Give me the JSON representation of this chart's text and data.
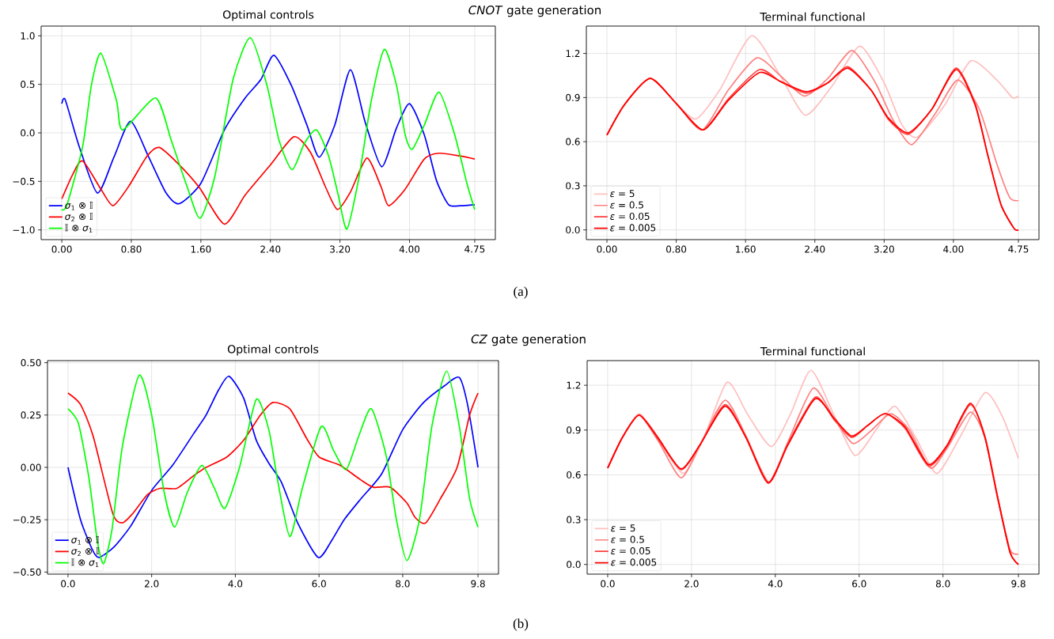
{
  "chart_data": [
    {
      "type": "line",
      "title": "Optimal controls",
      "annotations": [
        "*CNOT* gate generation",
        "(a)"
      ],
      "xlim": [
        -0.2375,
        4.9875
      ],
      "ylim": [
        -1.1,
        1.1
      ],
      "xticks": [
        {
          "value": 0,
          "label": "0.00"
        },
        {
          "value": 0.8,
          "label": "0.80"
        },
        {
          "value": 1.6,
          "label": "1.60"
        },
        {
          "value": 2.4,
          "label": "2.40"
        },
        {
          "value": 3.2,
          "label": "3.20"
        },
        {
          "value": 4.0,
          "label": "4.00"
        },
        {
          "value": 4.75,
          "label": "4.75"
        }
      ],
      "yticks": [
        {
          "value": -1,
          "label": "−1.0"
        },
        {
          "value": -0.5,
          "label": "−0.5"
        },
        {
          "value": 0,
          "label": "0.0"
        },
        {
          "value": 0.5,
          "label": "0.5"
        },
        {
          "value": 1,
          "label": "1.0"
        }
      ],
      "grid": true,
      "legend": "lower left",
      "series": [
        {
          "name": "*σ*$_{1}$ ⊗ 𝕀",
          "color": "#0000ff",
          "x": [
            0,
            0.04,
            0.2,
            0.41,
            0.6,
            0.79,
            1.0,
            1.2,
            1.35,
            1.6,
            1.87,
            2.11,
            2.29,
            2.44,
            2.64,
            2.82,
            2.96,
            3.14,
            3.32,
            3.49,
            3.68,
            3.85,
            4.0,
            4.17,
            4.31,
            4.45,
            4.59,
            4.75
          ],
          "values": [
            0.3,
            0.34,
            -0.14,
            -0.62,
            -0.25,
            0.12,
            -0.25,
            -0.62,
            -0.73,
            -0.52,
            0.03,
            0.36,
            0.55,
            0.8,
            0.49,
            0.08,
            -0.25,
            0.08,
            0.65,
            0.11,
            -0.35,
            0.05,
            0.3,
            -0.02,
            -0.49,
            -0.74,
            -0.75,
            -0.74
          ]
        },
        {
          "name": "*σ*$_{2}$ ⊗ 𝕀",
          "color": "#ff0000",
          "x": [
            0,
            0.13,
            0.24,
            0.45,
            0.59,
            0.77,
            0.98,
            1.12,
            1.33,
            1.58,
            1.87,
            2.11,
            2.4,
            2.67,
            2.86,
            3.03,
            3.17,
            3.32,
            3.51,
            3.67,
            3.76,
            3.95,
            4.17,
            4.34,
            4.59,
            4.75
          ],
          "values": [
            -0.68,
            -0.42,
            -0.29,
            -0.58,
            -0.75,
            -0.55,
            -0.24,
            -0.15,
            -0.31,
            -0.56,
            -0.94,
            -0.64,
            -0.33,
            -0.04,
            -0.2,
            -0.55,
            -0.79,
            -0.61,
            -0.26,
            -0.55,
            -0.75,
            -0.58,
            -0.27,
            -0.21,
            -0.24,
            -0.27
          ]
        },
        {
          "name": "𝕀 ⊗ *σ*$_{1}$",
          "color": "#00ff00",
          "x": [
            0,
            0.06,
            0.24,
            0.34,
            0.45,
            0.63,
            0.7,
            1.08,
            1.26,
            1.44,
            1.59,
            1.76,
            1.97,
            2.17,
            2.36,
            2.5,
            2.65,
            2.79,
            2.93,
            3.07,
            3.18,
            3.28,
            3.42,
            3.56,
            3.71,
            3.85,
            3.95,
            4.03,
            4.17,
            4.34,
            4.52,
            4.66,
            4.75
          ],
          "values": [
            -0.79,
            -0.74,
            -0.14,
            0.49,
            0.82,
            0.33,
            0.03,
            0.36,
            -0.08,
            -0.55,
            -0.88,
            -0.45,
            0.55,
            0.98,
            0.49,
            -0.08,
            -0.38,
            -0.11,
            0.03,
            -0.24,
            -0.64,
            -0.99,
            -0.45,
            0.33,
            0.86,
            0.49,
            -0.02,
            -0.17,
            0.08,
            0.42,
            -0.02,
            -0.52,
            -0.79
          ]
        }
      ]
    },
    {
      "type": "line",
      "title": "Terminal functional",
      "xlim": [
        -0.2375,
        4.9875
      ],
      "ylim": [
        -0.066,
        1.386
      ],
      "xticks": [
        {
          "value": 0,
          "label": "0.00"
        },
        {
          "value": 0.8,
          "label": "0.80"
        },
        {
          "value": 1.6,
          "label": "1.60"
        },
        {
          "value": 2.4,
          "label": "2.40"
        },
        {
          "value": 3.2,
          "label": "3.20"
        },
        {
          "value": 4.0,
          "label": "4.00"
        },
        {
          "value": 4.75,
          "label": "4.75"
        }
      ],
      "yticks": [
        {
          "value": 0,
          "label": "0.0"
        },
        {
          "value": 0.3,
          "label": "0.3"
        },
        {
          "value": 0.6,
          "label": "0.6"
        },
        {
          "value": 0.9,
          "label": "0.9"
        },
        {
          "value": 1.2,
          "label": "1.2"
        }
      ],
      "grid": true,
      "legend": "lower left",
      "series": [
        {
          "name": "*ε* = 5",
          "color": "#ffbfbf",
          "x": [
            0,
            0.2,
            0.5,
            0.8,
            1.03,
            1.3,
            1.67,
            2.0,
            2.29,
            2.6,
            2.92,
            3.2,
            3.4,
            3.58,
            3.9,
            4.2,
            4.5,
            4.68,
            4.75
          ],
          "values": [
            0.645,
            0.85,
            1.03,
            0.86,
            0.755,
            0.95,
            1.32,
            1.05,
            0.78,
            0.98,
            1.25,
            1.0,
            0.72,
            0.63,
            0.85,
            1.15,
            1.02,
            0.9,
            0.91
          ]
        },
        {
          "name": "*ε* = 0.5",
          "color": "#ff8080",
          "x": [
            0,
            0.2,
            0.5,
            0.8,
            1.1,
            1.4,
            1.73,
            2.0,
            2.28,
            2.55,
            2.83,
            3.1,
            3.3,
            3.52,
            3.8,
            4.05,
            4.3,
            4.5,
            4.65,
            4.75
          ],
          "values": [
            0.645,
            0.85,
            1.03,
            0.86,
            0.68,
            0.95,
            1.17,
            1.05,
            0.91,
            1.03,
            1.22,
            1.0,
            0.75,
            0.58,
            0.8,
            1.02,
            0.82,
            0.45,
            0.22,
            0.2
          ]
        },
        {
          "name": "*ε* = 0.05",
          "color": "#ff4040",
          "x": [
            0,
            0.2,
            0.5,
            0.8,
            1.11,
            1.4,
            1.76,
            2.0,
            2.3,
            2.55,
            2.78,
            3.05,
            3.25,
            3.48,
            3.75,
            4.03,
            4.25,
            4.4,
            4.55,
            4.7,
            4.75
          ],
          "values": [
            0.645,
            0.85,
            1.03,
            0.86,
            0.68,
            0.89,
            1.09,
            1.01,
            0.93,
            1.0,
            1.11,
            0.95,
            0.75,
            0.65,
            0.82,
            1.1,
            0.86,
            0.5,
            0.17,
            0.01,
            0.0
          ]
        },
        {
          "name": "*ε* = 0.005",
          "color": "#ff0000",
          "x": [
            0,
            0.2,
            0.5,
            0.8,
            1.11,
            1.4,
            1.76,
            2.0,
            2.3,
            2.55,
            2.78,
            3.05,
            3.25,
            3.48,
            3.75,
            4.03,
            4.25,
            4.4,
            4.55,
            4.7,
            4.75
          ],
          "values": [
            0.645,
            0.85,
            1.03,
            0.86,
            0.68,
            0.88,
            1.07,
            1.01,
            0.94,
            1.0,
            1.1,
            0.95,
            0.76,
            0.66,
            0.82,
            1.09,
            0.85,
            0.5,
            0.17,
            0.01,
            0.0
          ]
        }
      ]
    },
    {
      "type": "line",
      "title": "Optimal controls",
      "annotations": [
        "*CZ* gate generation",
        "(b)"
      ],
      "xlim": [
        -0.49,
        10.29
      ],
      "ylim": [
        -0.51,
        0.51
      ],
      "xticks": [
        {
          "value": 0,
          "label": "0.0"
        },
        {
          "value": 2,
          "label": "2.0"
        },
        {
          "value": 4,
          "label": "4.0"
        },
        {
          "value": 6,
          "label": "6.0"
        },
        {
          "value": 8,
          "label": "8.0"
        },
        {
          "value": 9.8,
          "label": "9.8"
        }
      ],
      "yticks": [
        {
          "value": -0.5,
          "label": "−0.50"
        },
        {
          "value": -0.25,
          "label": "−0.25"
        },
        {
          "value": 0,
          "label": "0.00"
        },
        {
          "value": 0.25,
          "label": "0.25"
        },
        {
          "value": 0.5,
          "label": "0.50"
        }
      ],
      "grid": true,
      "legend": "lower left",
      "series": [
        {
          "name": "*σ*$_{1}$ ⊗ 𝕀",
          "color": "#0000ff",
          "x": [
            0,
            0.3,
            0.6,
            0.75,
            1.1,
            1.5,
            2.0,
            2.5,
            3.0,
            3.3,
            3.6,
            3.85,
            4.2,
            4.5,
            4.8,
            5.1,
            5.5,
            5.98,
            6.3,
            6.6,
            7.0,
            7.5,
            8.0,
            8.5,
            9.0,
            9.35,
            9.55,
            9.8
          ],
          "values": [
            0.0,
            -0.25,
            -0.4,
            -0.43,
            -0.38,
            -0.28,
            -0.11,
            0.01,
            0.16,
            0.25,
            0.37,
            0.435,
            0.33,
            0.13,
            0.02,
            -0.07,
            -0.27,
            -0.43,
            -0.35,
            -0.25,
            -0.15,
            -0.03,
            0.18,
            0.31,
            0.39,
            0.43,
            0.3,
            0.0
          ]
        },
        {
          "name": "*σ*$_{2}$ ⊗ 𝕀",
          "color": "#ff0000",
          "x": [
            0,
            0.3,
            0.6,
            1.07,
            1.3,
            1.55,
            1.9,
            2.2,
            2.6,
            3.0,
            3.3,
            3.8,
            4.2,
            4.6,
            4.9,
            5.3,
            5.7,
            6.0,
            6.5,
            7.0,
            7.3,
            7.7,
            8.1,
            8.3,
            8.55,
            8.9,
            9.3,
            9.6,
            9.8
          ],
          "values": [
            0.355,
            0.3,
            0.15,
            -0.22,
            -0.265,
            -0.22,
            -0.13,
            -0.1,
            -0.1,
            -0.04,
            0.0,
            0.05,
            0.13,
            0.25,
            0.31,
            0.28,
            0.14,
            0.05,
            0.01,
            -0.06,
            -0.095,
            -0.095,
            -0.17,
            -0.24,
            -0.265,
            -0.15,
            0.0,
            0.25,
            0.355
          ]
        },
        {
          "name": "𝕀 ⊗ *σ*$_{1}$",
          "color": "#00ff00",
          "x": [
            0,
            0.25,
            0.5,
            0.7,
            0.85,
            1.05,
            1.3,
            1.7,
            2.0,
            2.3,
            2.55,
            2.85,
            3.2,
            3.5,
            3.75,
            4.1,
            4.5,
            4.8,
            5.0,
            5.3,
            5.6,
            6.05,
            6.35,
            6.65,
            6.95,
            7.25,
            7.6,
            7.85,
            8.1,
            8.4,
            8.7,
            9.05,
            9.35,
            9.6,
            9.8
          ],
          "values": [
            0.28,
            0.21,
            -0.05,
            -0.35,
            -0.46,
            -0.3,
            0.1,
            0.44,
            0.25,
            -0.12,
            -0.285,
            -0.12,
            0.01,
            -0.1,
            -0.195,
            0.0,
            0.325,
            0.18,
            -0.05,
            -0.33,
            -0.1,
            0.195,
            0.08,
            -0.01,
            0.15,
            0.28,
            0.06,
            -0.25,
            -0.445,
            -0.25,
            0.2,
            0.46,
            0.2,
            -0.15,
            -0.285
          ]
        }
      ]
    },
    {
      "type": "line",
      "title": "Terminal functional",
      "xlim": [
        -0.49,
        10.29
      ],
      "ylim": [
        -0.065,
        1.365
      ],
      "xticks": [
        {
          "value": 0,
          "label": "0.0"
        },
        {
          "value": 2,
          "label": "2.0"
        },
        {
          "value": 4,
          "label": "4.0"
        },
        {
          "value": 6,
          "label": "6.0"
        },
        {
          "value": 8,
          "label": "8.0"
        },
        {
          "value": 9.8,
          "label": "9.8"
        }
      ],
      "yticks": [
        {
          "value": 0,
          "label": "0.0"
        },
        {
          "value": 0.3,
          "label": "0.3"
        },
        {
          "value": 0.6,
          "label": "0.6"
        },
        {
          "value": 0.9,
          "label": "0.9"
        },
        {
          "value": 1.2,
          "label": "1.2"
        }
      ],
      "grid": true,
      "legend": "lower left",
      "series": [
        {
          "name": "*ε* = 5",
          "color": "#ffbfbf",
          "x": [
            0,
            0.35,
            0.75,
            1.2,
            1.8,
            2.3,
            2.85,
            3.35,
            3.9,
            4.35,
            4.85,
            5.4,
            5.9,
            6.4,
            6.85,
            7.35,
            7.85,
            8.4,
            9.0,
            9.4,
            9.8
          ],
          "values": [
            0.645,
            0.85,
            1.01,
            0.85,
            0.61,
            0.85,
            1.22,
            1.0,
            0.79,
            1.0,
            1.3,
            1.0,
            0.73,
            0.9,
            1.06,
            0.85,
            0.61,
            0.85,
            1.15,
            1.0,
            0.71
          ]
        },
        {
          "name": "*ε* = 0.5",
          "color": "#ff8080",
          "x": [
            0,
            0.35,
            0.75,
            1.2,
            1.75,
            2.2,
            2.8,
            3.3,
            3.85,
            4.3,
            4.9,
            5.4,
            5.85,
            6.3,
            6.75,
            7.2,
            7.7,
            8.1,
            8.65,
            9.0,
            9.3,
            9.6,
            9.8
          ],
          "values": [
            0.645,
            0.85,
            1.0,
            0.83,
            0.58,
            0.8,
            1.1,
            0.86,
            0.55,
            0.82,
            1.18,
            0.98,
            0.81,
            0.9,
            1.01,
            0.9,
            0.645,
            0.78,
            1.02,
            0.85,
            0.45,
            0.1,
            0.07
          ]
        },
        {
          "name": "*ε* = 0.05",
          "color": "#ff4040",
          "x": [
            0,
            0.35,
            0.75,
            1.2,
            1.75,
            2.2,
            2.8,
            3.3,
            3.83,
            4.3,
            4.95,
            5.4,
            5.82,
            6.2,
            6.62,
            7.1,
            7.65,
            8.1,
            8.65,
            9.0,
            9.3,
            9.6,
            9.8
          ],
          "values": [
            0.645,
            0.85,
            1.0,
            0.84,
            0.635,
            0.8,
            1.07,
            0.85,
            0.55,
            0.81,
            1.12,
            0.97,
            0.85,
            0.93,
            1.01,
            0.91,
            0.66,
            0.79,
            1.07,
            0.86,
            0.46,
            0.08,
            0.0
          ]
        },
        {
          "name": "*ε* = 0.005",
          "color": "#ff0000",
          "x": [
            0,
            0.35,
            0.75,
            1.2,
            1.75,
            2.2,
            2.8,
            3.3,
            3.83,
            4.3,
            4.95,
            5.4,
            5.82,
            6.2,
            6.62,
            7.1,
            7.65,
            8.1,
            8.65,
            9.0,
            9.3,
            9.6,
            9.8
          ],
          "values": [
            0.645,
            0.85,
            1.0,
            0.85,
            0.64,
            0.8,
            1.06,
            0.85,
            0.545,
            0.8,
            1.11,
            0.98,
            0.86,
            0.93,
            1.01,
            0.92,
            0.67,
            0.8,
            1.08,
            0.85,
            0.45,
            0.08,
            0.0
          ]
        }
      ]
    }
  ]
}
